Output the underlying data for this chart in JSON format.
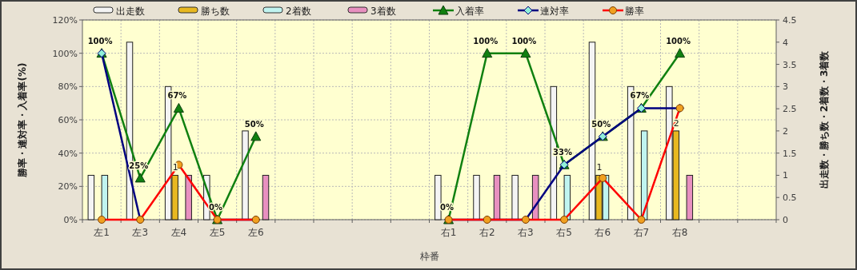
{
  "chart_data": {
    "type": "bar",
    "xlabel": "枠番",
    "ylabel": "勝率・連対率・入着率(%)",
    "y2label": "出走数・勝ち数・2着数・3着数",
    "categories": [
      "左1",
      "左3",
      "左4",
      "左5",
      "左6",
      null,
      null,
      null,
      null,
      "右1",
      "右2",
      "右3",
      "右5",
      "右6",
      "右7",
      "右8",
      null,
      null
    ],
    "ylim": [
      0,
      120
    ],
    "yticks": [
      {
        "value": 0,
        "label": "0%"
      },
      {
        "value": 20,
        "label": "20%"
      },
      {
        "value": 40,
        "label": "40%"
      },
      {
        "value": 60,
        "label": "60%"
      },
      {
        "value": 80,
        "label": "80%"
      },
      {
        "value": 100,
        "label": "100%"
      },
      {
        "value": 120,
        "label": "120%"
      }
    ],
    "y2lim": [
      0,
      4.5
    ],
    "y2ticks": [
      0,
      0.5,
      1,
      1.5,
      2,
      2.5,
      3,
      3.5,
      4,
      4.5
    ],
    "grid": true,
    "legend": "top",
    "series": [
      {
        "name": "出走数",
        "axis": "y2",
        "color": "#f4f4f4",
        "values": [
          1,
          4,
          3,
          1,
          2,
          null,
          null,
          null,
          null,
          1,
          1,
          1,
          3,
          4,
          3,
          3,
          null,
          null
        ]
      },
      {
        "name": "勝ち数",
        "axis": "y2",
        "color": "#e8b820",
        "values": [
          0,
          0,
          1,
          0,
          0,
          null,
          null,
          null,
          null,
          0,
          0,
          0,
          0,
          1,
          0,
          2,
          null,
          null
        ],
        "value_labels": [
          null,
          null,
          "1",
          null,
          null,
          null,
          null,
          null,
          null,
          null,
          null,
          null,
          null,
          "1",
          null,
          "2",
          null,
          null
        ]
      },
      {
        "name": "2着数",
        "axis": "y2",
        "color": "#c0f4f0",
        "values": [
          1,
          0,
          0,
          0,
          0,
          null,
          null,
          null,
          null,
          0,
          0,
          0,
          1,
          1,
          2,
          0,
          null,
          null
        ]
      },
      {
        "name": "3着数",
        "axis": "y2",
        "color": "#e890c0",
        "values": [
          0,
          0,
          1,
          0,
          1,
          null,
          null,
          null,
          null,
          0,
          1,
          1,
          0,
          0,
          0,
          1,
          null,
          null
        ]
      },
      {
        "name": "入着率",
        "type": "line",
        "marker": "triangle",
        "color": "#108010",
        "values": [
          100,
          25,
          67,
          0,
          50,
          null,
          null,
          null,
          null,
          0,
          100,
          100,
          33,
          50,
          67,
          100,
          null,
          null
        ],
        "value_labels": [
          "100%",
          "25%",
          "67%",
          "0%",
          "50%",
          null,
          null,
          null,
          null,
          "0%",
          "100%",
          "100%",
          "33%",
          "50%",
          "67%",
          "100%",
          null,
          null
        ]
      },
      {
        "name": "連対率",
        "type": "line",
        "marker": "diamond",
        "color": "#000080",
        "values": [
          100,
          0,
          null,
          0,
          0,
          null,
          null,
          null,
          null,
          0,
          0,
          0,
          33,
          50,
          67,
          67,
          null,
          null
        ]
      },
      {
        "name": "勝率",
        "type": "line",
        "marker": "circle",
        "color": "#ff0000",
        "values": [
          0,
          0,
          33,
          0,
          0,
          null,
          null,
          null,
          null,
          0,
          0,
          0,
          0,
          25,
          0,
          67,
          null,
          null
        ]
      }
    ]
  }
}
